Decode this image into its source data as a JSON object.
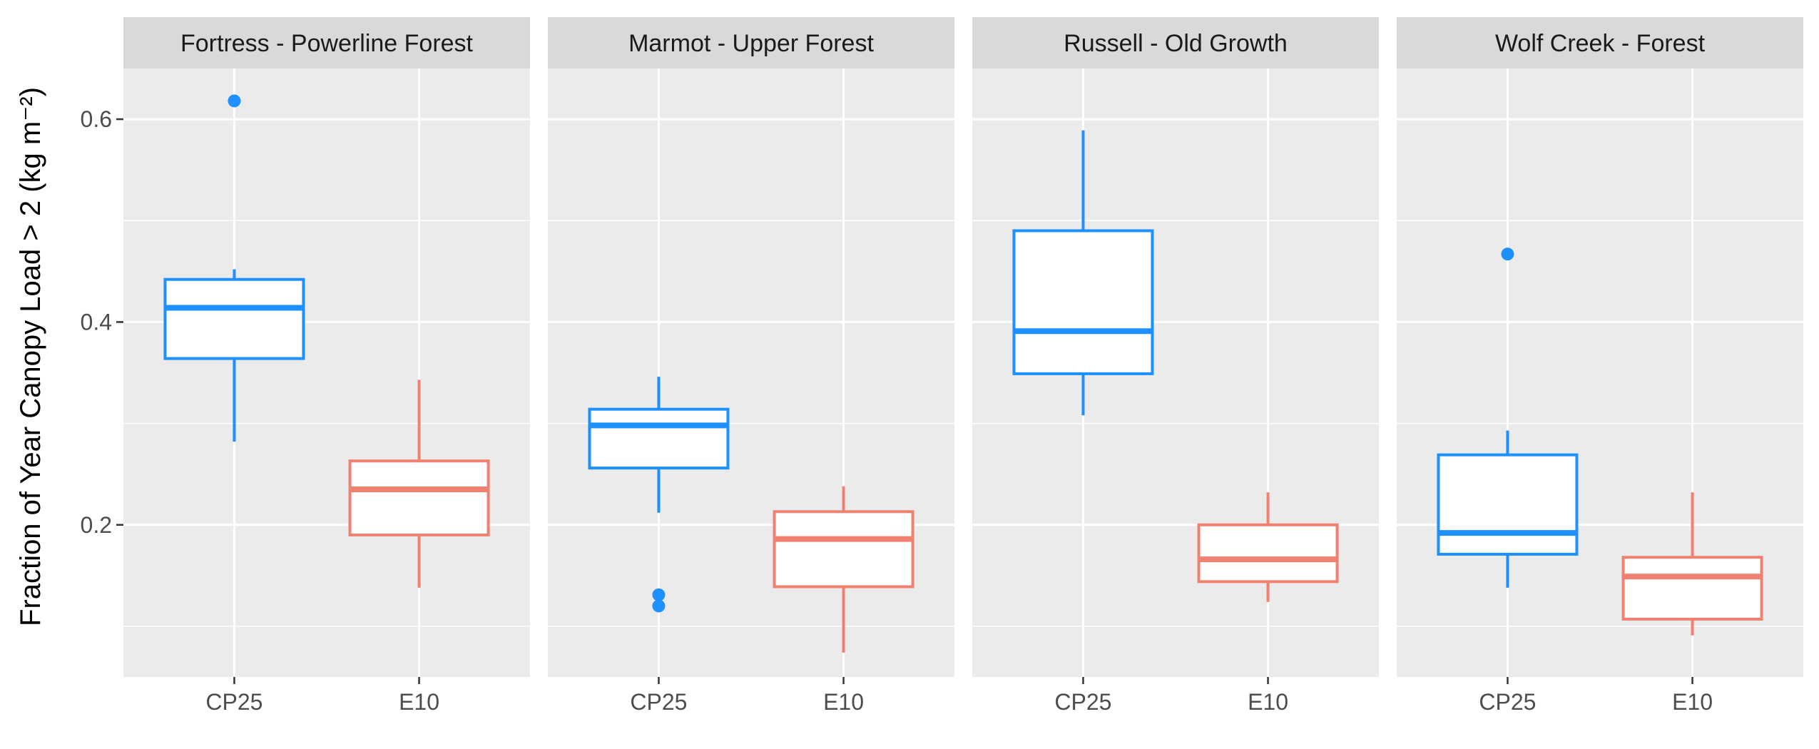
{
  "chart_data": {
    "type": "box",
    "ylabel": "Fraction of Year Canopy Load > 2 (kg m⁻²)",
    "xlabel": "",
    "ylim": [
      0.05,
      0.65
    ],
    "y_ticks": [
      0.2,
      0.4,
      0.6
    ],
    "y_tick_labels": [
      "0.2",
      "0.4",
      "0.6"
    ],
    "grid": true,
    "legend": "none",
    "categories": [
      "CP25",
      "E10"
    ],
    "colors": {
      "CP25": "#1e90ff",
      "E10": "#f08070"
    },
    "panels": [
      {
        "title": "Fortress - Powerline Forest",
        "boxes": [
          {
            "group": "CP25",
            "min": 0.282,
            "q1": 0.364,
            "median": 0.414,
            "q3": 0.442,
            "max": 0.452,
            "outliers": [
              0.618
            ]
          },
          {
            "group": "E10",
            "min": 0.138,
            "q1": 0.19,
            "median": 0.235,
            "q3": 0.263,
            "max": 0.343,
            "outliers": []
          }
        ]
      },
      {
        "title": "Marmot - Upper Forest",
        "boxes": [
          {
            "group": "CP25",
            "min": 0.212,
            "q1": 0.256,
            "median": 0.298,
            "q3": 0.314,
            "max": 0.346,
            "outliers": [
              0.131,
              0.12
            ]
          },
          {
            "group": "E10",
            "min": 0.074,
            "q1": 0.139,
            "median": 0.186,
            "q3": 0.213,
            "max": 0.238,
            "outliers": []
          }
        ]
      },
      {
        "title": "Russell - Old Growth",
        "boxes": [
          {
            "group": "CP25",
            "min": 0.308,
            "q1": 0.349,
            "median": 0.391,
            "q3": 0.49,
            "max": 0.589,
            "outliers": []
          },
          {
            "group": "E10",
            "min": 0.124,
            "q1": 0.144,
            "median": 0.166,
            "q3": 0.2,
            "max": 0.232,
            "outliers": []
          }
        ]
      },
      {
        "title": "Wolf Creek - Forest",
        "boxes": [
          {
            "group": "CP25",
            "min": 0.138,
            "q1": 0.171,
            "median": 0.192,
            "q3": 0.269,
            "max": 0.293,
            "outliers": [
              0.467
            ]
          },
          {
            "group": "E10",
            "min": 0.091,
            "q1": 0.107,
            "median": 0.149,
            "q3": 0.168,
            "max": 0.232,
            "outliers": []
          }
        ]
      }
    ]
  }
}
